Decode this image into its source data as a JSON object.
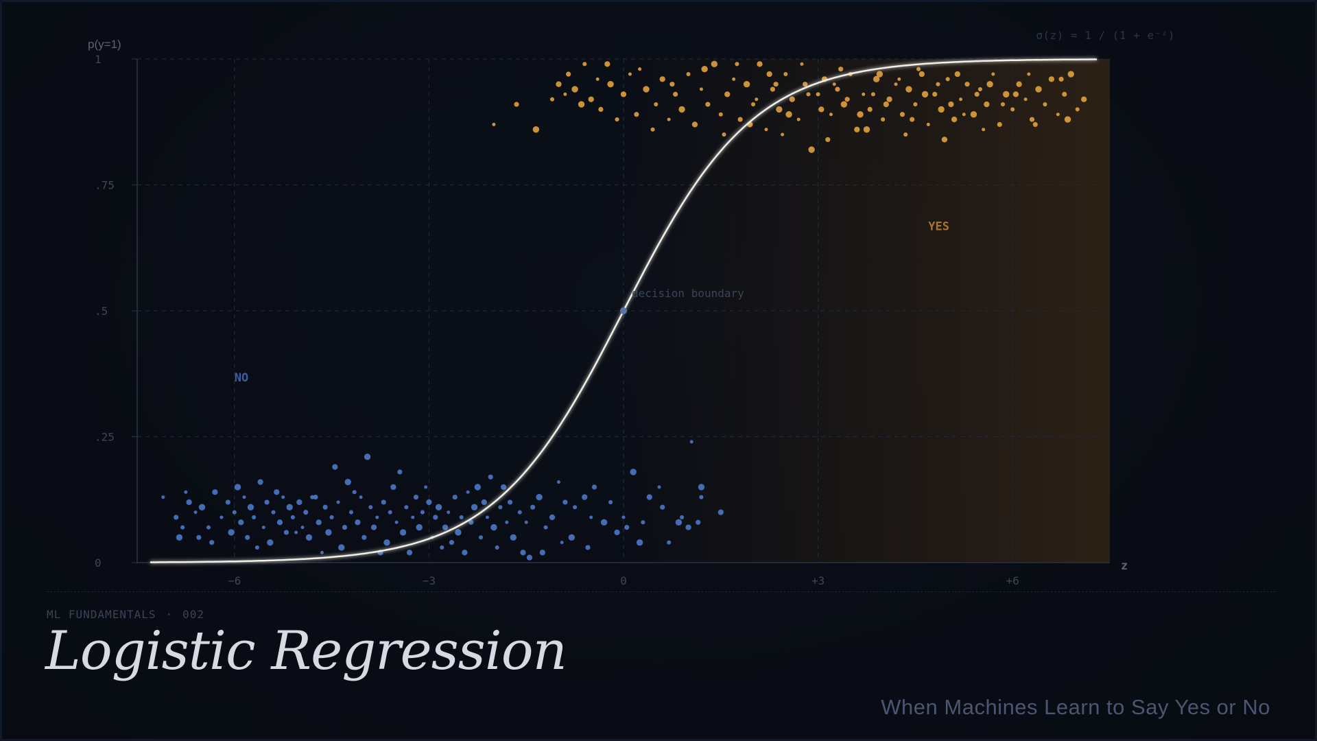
{
  "header": {
    "formula": "σ(z) = 1 / (1 + e⁻ᶻ)"
  },
  "footer": {
    "kicker_left": "ML FUNDAMENTALS",
    "kicker_dot": "·",
    "kicker_right": "002",
    "title": "Logistic Regression",
    "subtitle": "When Machines Learn to Say Yes or No"
  },
  "colors": {
    "background": "#090d15",
    "curve": "#f2efe6",
    "negative": "#4a78c8",
    "positive": "#e0a13c",
    "positive_region": "#2a1f14",
    "axis": "#2a3347",
    "grid": "#222a3b",
    "tick_text": "#3d4659"
  },
  "chart_data": {
    "type": "scatter",
    "title": "",
    "xlabel": "z",
    "ylabel": "p(y=1)",
    "xlim": [
      -7.5,
      7.5
    ],
    "ylim": [
      0,
      1
    ],
    "x_ticks": [
      -6,
      -3,
      0,
      3,
      6
    ],
    "x_tick_labels": [
      "−6",
      "−3",
      "0",
      "+3",
      "+6"
    ],
    "y_ticks": [
      0,
      0.25,
      0.5,
      0.75,
      1
    ],
    "y_tick_labels": [
      "0",
      ".25",
      ".5",
      ".75",
      "1"
    ],
    "grid": true,
    "curve": {
      "name": "sigmoid",
      "function": "1/(1+exp(-z))"
    },
    "decision_boundary": {
      "x": 0,
      "y": 0.5,
      "label": "decision  boundary"
    },
    "region_labels": {
      "negative": "NO",
      "positive": "YES"
    },
    "series": [
      {
        "class": "negative",
        "points": [
          [
            -7.1,
            0.13
          ],
          [
            -6.9,
            0.09
          ],
          [
            -6.85,
            0.05
          ],
          [
            -6.8,
            0.07
          ],
          [
            -6.7,
            0.12
          ],
          [
            -6.6,
            0.1
          ],
          [
            -6.55,
            0.05
          ],
          [
            -6.5,
            0.11
          ],
          [
            -6.4,
            0.07
          ],
          [
            -6.3,
            0.14
          ],
          [
            -6.2,
            0.09
          ],
          [
            -6.1,
            0.12
          ],
          [
            -6.05,
            0.06
          ],
          [
            -6.0,
            0.1
          ],
          [
            -5.9,
            0.08
          ],
          [
            -5.85,
            0.13
          ],
          [
            -5.8,
            0.05
          ],
          [
            -5.75,
            0.11
          ],
          [
            -5.7,
            0.09
          ],
          [
            -5.6,
            0.16
          ],
          [
            -5.55,
            0.07
          ],
          [
            -5.5,
            0.12
          ],
          [
            -5.45,
            0.04
          ],
          [
            -5.4,
            0.1
          ],
          [
            -5.3,
            0.08
          ],
          [
            -5.25,
            0.13
          ],
          [
            -5.2,
            0.06
          ],
          [
            -5.15,
            0.11
          ],
          [
            -5.1,
            0.09
          ],
          [
            -5.0,
            0.12
          ],
          [
            -4.95,
            0.07
          ],
          [
            -4.9,
            0.1
          ],
          [
            -4.85,
            0.05
          ],
          [
            -4.8,
            0.13
          ],
          [
            -4.7,
            0.08
          ],
          [
            -4.65,
            0.02
          ],
          [
            -4.6,
            0.11
          ],
          [
            -4.55,
            0.06
          ],
          [
            -4.5,
            0.09
          ],
          [
            -4.45,
            0.19
          ],
          [
            -4.4,
            0.12
          ],
          [
            -4.3,
            0.07
          ],
          [
            -4.25,
            0.16
          ],
          [
            -4.2,
            0.1
          ],
          [
            -4.1,
            0.08
          ],
          [
            -4.05,
            0.13
          ],
          [
            -4.0,
            0.05
          ],
          [
            -3.95,
            0.21
          ],
          [
            -3.9,
            0.11
          ],
          [
            -3.85,
            0.07
          ],
          [
            -3.8,
            0.09
          ],
          [
            -3.7,
            0.12
          ],
          [
            -3.65,
            0.04
          ],
          [
            -3.6,
            0.1
          ],
          [
            -3.55,
            0.15
          ],
          [
            -3.5,
            0.08
          ],
          [
            -3.45,
            0.18
          ],
          [
            -3.4,
            0.06
          ],
          [
            -3.35,
            0.11
          ],
          [
            -3.3,
            0.02
          ],
          [
            -3.25,
            0.09
          ],
          [
            -3.2,
            0.13
          ],
          [
            -3.15,
            0.07
          ],
          [
            -3.1,
            0.1
          ],
          [
            -3.0,
            0.12
          ],
          [
            -2.95,
            0.05
          ],
          [
            -2.9,
            0.09
          ],
          [
            -2.85,
            0.11
          ],
          [
            -2.8,
            0.03
          ],
          [
            -2.75,
            0.07
          ],
          [
            -2.7,
            0.1
          ],
          [
            -2.6,
            0.13
          ],
          [
            -2.55,
            0.06
          ],
          [
            -2.5,
            0.09
          ],
          [
            -2.45,
            0.02
          ],
          [
            -2.4,
            0.14
          ],
          [
            -2.35,
            0.08
          ],
          [
            -2.3,
            0.11
          ],
          [
            -2.2,
            0.05
          ],
          [
            -2.15,
            0.12
          ],
          [
            -2.1,
            0.09
          ],
          [
            -2.05,
            0.17
          ],
          [
            -2.0,
            0.07
          ],
          [
            -1.9,
            0.11
          ],
          [
            -1.85,
            0.15
          ],
          [
            -1.8,
            0.08
          ],
          [
            -1.75,
            0.12
          ],
          [
            -1.7,
            0.05
          ],
          [
            -1.6,
            0.1
          ],
          [
            -1.55,
            0.02
          ],
          [
            -1.5,
            0.08
          ],
          [
            -1.4,
            0.11
          ],
          [
            -1.3,
            0.13
          ],
          [
            -1.2,
            0.07
          ],
          [
            -1.1,
            0.09
          ],
          [
            -1.0,
            0.16
          ],
          [
            -0.9,
            0.12
          ],
          [
            -0.8,
            0.05
          ],
          [
            -0.75,
            0.11
          ],
          [
            -0.6,
            0.13
          ],
          [
            -0.5,
            0.09
          ],
          [
            -0.45,
            0.15
          ],
          [
            -0.3,
            0.08
          ],
          [
            -0.2,
            0.12
          ],
          [
            -0.1,
            0.06
          ],
          [
            0.0,
            0.09
          ],
          [
            0.05,
            0.07
          ],
          [
            0.15,
            0.18
          ],
          [
            0.3,
            0.08
          ],
          [
            0.4,
            0.13
          ],
          [
            0.55,
            0.15
          ],
          [
            0.6,
            0.11
          ],
          [
            0.85,
            0.08
          ],
          [
            0.9,
            0.09
          ],
          [
            1.0,
            0.07
          ],
          [
            1.05,
            0.24
          ],
          [
            1.15,
            0.08
          ],
          [
            1.2,
            0.15
          ],
          [
            1.2,
            0.13
          ],
          [
            1.5,
            0.1
          ],
          [
            -6.75,
            0.14
          ],
          [
            -6.35,
            0.04
          ],
          [
            -5.95,
            0.15
          ],
          [
            -5.65,
            0.03
          ],
          [
            -5.35,
            0.14
          ],
          [
            -5.05,
            0.06
          ],
          [
            -4.75,
            0.13
          ],
          [
            -4.35,
            0.03
          ],
          [
            -4.15,
            0.14
          ],
          [
            -3.75,
            0.02
          ],
          [
            -3.05,
            0.15
          ],
          [
            -2.65,
            0.04
          ],
          [
            -2.25,
            0.15
          ],
          [
            -1.95,
            0.03
          ],
          [
            -1.45,
            0.01
          ],
          [
            -0.95,
            0.04
          ],
          [
            -0.55,
            0.03
          ],
          [
            0.25,
            0.04
          ],
          [
            0.7,
            0.04
          ],
          [
            -1.25,
            0.02
          ]
        ]
      },
      {
        "class": "positive",
        "points": [
          [
            -2.0,
            0.87
          ],
          [
            -1.65,
            0.91
          ],
          [
            -1.35,
            0.86
          ],
          [
            -1.1,
            0.92
          ],
          [
            -1.0,
            0.95
          ],
          [
            -0.9,
            0.93
          ],
          [
            -0.85,
            0.97
          ],
          [
            -0.75,
            0.94
          ],
          [
            -0.6,
            0.99
          ],
          [
            -0.5,
            0.92
          ],
          [
            -0.4,
            0.96
          ],
          [
            -0.35,
            0.9
          ],
          [
            -0.2,
            0.95
          ],
          [
            -0.1,
            0.88
          ],
          [
            0.0,
            0.93
          ],
          [
            0.1,
            0.97
          ],
          [
            0.2,
            0.89
          ],
          [
            0.35,
            0.94
          ],
          [
            0.5,
            0.91
          ],
          [
            0.6,
            0.96
          ],
          [
            0.7,
            0.88
          ],
          [
            0.8,
            0.93
          ],
          [
            0.9,
            0.9
          ],
          [
            1.0,
            0.97
          ],
          [
            1.1,
            0.87
          ],
          [
            1.2,
            0.94
          ],
          [
            1.3,
            0.91
          ],
          [
            1.4,
            0.99
          ],
          [
            1.5,
            0.89
          ],
          [
            1.6,
            0.93
          ],
          [
            1.7,
            0.96
          ],
          [
            1.8,
            0.88
          ],
          [
            1.9,
            0.95
          ],
          [
            2.0,
            0.91
          ],
          [
            2.1,
            0.99
          ],
          [
            2.2,
            0.86
          ],
          [
            2.3,
            0.94
          ],
          [
            2.4,
            0.9
          ],
          [
            2.5,
            0.97
          ],
          [
            2.6,
            0.92
          ],
          [
            2.7,
            0.88
          ],
          [
            2.8,
            0.95
          ],
          [
            2.9,
            0.82
          ],
          [
            3.0,
            0.93
          ],
          [
            3.1,
            0.96
          ],
          [
            3.2,
            0.89
          ],
          [
            3.3,
            0.94
          ],
          [
            3.4,
            0.91
          ],
          [
            3.5,
            0.97
          ],
          [
            3.6,
            0.86
          ],
          [
            3.7,
            0.93
          ],
          [
            3.8,
            0.9
          ],
          [
            3.9,
            0.96
          ],
          [
            4.0,
            0.88
          ],
          [
            4.1,
            0.92
          ],
          [
            4.2,
            0.95
          ],
          [
            4.3,
            0.89
          ],
          [
            4.4,
            0.94
          ],
          [
            4.5,
            0.91
          ],
          [
            4.6,
            0.97
          ],
          [
            4.7,
            0.87
          ],
          [
            4.8,
            0.93
          ],
          [
            4.9,
            0.9
          ],
          [
            5.0,
            0.96
          ],
          [
            5.1,
            0.88
          ],
          [
            5.2,
            0.92
          ],
          [
            5.3,
            0.95
          ],
          [
            5.4,
            0.89
          ],
          [
            5.5,
            0.94
          ],
          [
            5.6,
            0.91
          ],
          [
            5.7,
            0.97
          ],
          [
            5.8,
            0.87
          ],
          [
            5.9,
            0.93
          ],
          [
            6.0,
            0.9
          ],
          [
            6.1,
            0.95
          ],
          [
            6.2,
            0.92
          ],
          [
            6.3,
            0.88
          ],
          [
            6.4,
            0.94
          ],
          [
            6.5,
            0.91
          ],
          [
            6.6,
            0.96
          ],
          [
            6.7,
            0.89
          ],
          [
            6.8,
            0.93
          ],
          [
            6.9,
            0.97
          ],
          [
            7.0,
            0.9
          ],
          [
            7.1,
            0.92
          ],
          [
            2.05,
            0.92
          ],
          [
            2.35,
            0.95
          ],
          [
            2.55,
            0.89
          ],
          [
            2.85,
            0.93
          ],
          [
            3.05,
            0.9
          ],
          [
            3.25,
            0.95
          ],
          [
            3.45,
            0.92
          ],
          [
            3.65,
            0.89
          ],
          [
            3.85,
            0.93
          ],
          [
            4.05,
            0.91
          ],
          [
            4.25,
            0.96
          ],
          [
            4.45,
            0.88
          ],
          [
            4.65,
            0.93
          ],
          [
            4.85,
            0.95
          ],
          [
            5.05,
            0.91
          ],
          [
            5.25,
            0.89
          ],
          [
            5.45,
            0.93
          ],
          [
            5.65,
            0.95
          ],
          [
            5.85,
            0.91
          ],
          [
            6.05,
            0.93
          ],
          [
            0.25,
            0.98
          ],
          [
            0.75,
            0.95
          ],
          [
            1.25,
            0.98
          ],
          [
            1.75,
            0.99
          ],
          [
            2.25,
            0.97
          ],
          [
            2.75,
            0.99
          ],
          [
            3.35,
            0.98
          ],
          [
            3.95,
            0.97
          ],
          [
            4.55,
            0.98
          ],
          [
            5.15,
            0.97
          ],
          [
            6.25,
            0.97
          ],
          [
            6.75,
            0.96
          ],
          [
            -0.65,
            0.91
          ],
          [
            1.55,
            0.85
          ],
          [
            1.95,
            0.87
          ],
          [
            2.45,
            0.85
          ],
          [
            3.15,
            0.84
          ],
          [
            3.75,
            0.86
          ],
          [
            4.35,
            0.85
          ],
          [
            4.95,
            0.84
          ],
          [
            5.55,
            0.86
          ],
          [
            6.35,
            0.87
          ],
          [
            6.85,
            0.88
          ],
          [
            0.45,
            0.86
          ],
          [
            -0.25,
            0.99
          ]
        ]
      }
    ]
  }
}
